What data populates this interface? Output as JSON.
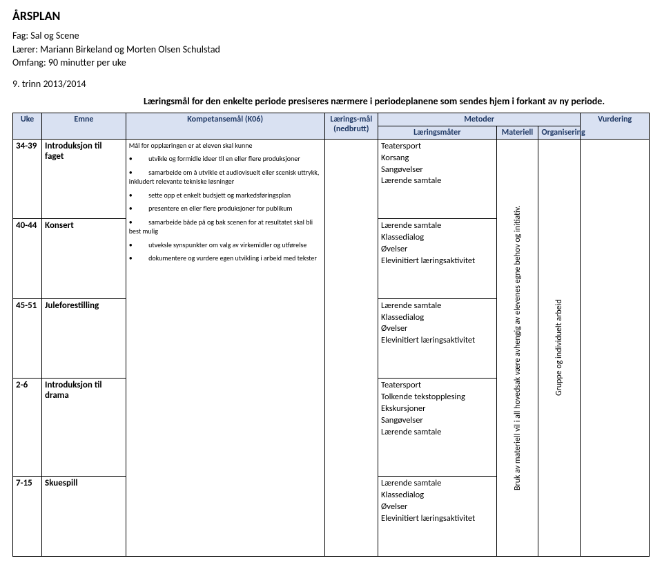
{
  "title": "ÅRSPLAN",
  "meta": {
    "fag_line": "Fag: Sal og Scene",
    "laerer_line": "Lærer: Mariann Birkeland og Morten Olsen Schulstad",
    "omfang_line": "Omfang: 90 minutter per uke"
  },
  "grade_line": "9. trinn 2013/2014",
  "intro": "Læringsmål for den enkelte periode presiseres nærmere i periodeplanene som sendes hjem i forkant av ny periode.",
  "headers": {
    "uke": "Uke",
    "emne": "Emne",
    "k06": "Kompetansemål (K06)",
    "mal": "Lærings-mål (nedbrutt)",
    "metoder": "Metoder",
    "laeringsmater": "Læringsmåter",
    "materiell": "Materiell",
    "organisering": "Organisering",
    "vurdering": "Vurdering"
  },
  "k06": {
    "intro": "Mål for opplæringen er at eleven skal kunne",
    "item1": "utvikle og formidle ideer til en eller flere produksjoner",
    "item2": "samarbeide om å utvikle et audiovisuelt eller scenisk uttrykk, inkludert relevante tekniske løsninger",
    "item3": "sette opp et enkelt budsjett og markedsføringsplan",
    "item4": "presentere en eller flere produksjoner for publikum",
    "item5": "samarbeide både på og bak scenen for at resultatet skal bli best mulig",
    "item6": "utveksle synspunkter om valg av virkemidler og utførelse",
    "item7": "dokumentere og vurdere egen utvikling i arbeid med tekster"
  },
  "rows": [
    {
      "uke": "34-39",
      "emne": "Introduksjon til faget",
      "lm": "Teatersport\nKorsang\nSangøvelser\nLærende samtale"
    },
    {
      "uke": "40-44",
      "emne": "Konsert",
      "lm": "Lærende samtale\nKlassedialog\nØvelser\nElevinitiert læringsaktivitet"
    },
    {
      "uke": "45-51",
      "emne": "Juleforestilling",
      "lm": "Lærende samtale\nKlassedialog\nØvelser\nElevinitiert læringsaktivitet"
    },
    {
      "uke": "2-6",
      "emne": "Introduksjon til drama",
      "lm": "Teatersport\nTolkende tekstopplesing\nEkskursjoner\nSangøvelser\nLærende samtale"
    },
    {
      "uke": "7-15",
      "emne": "Skuespill",
      "lm": "Lærende samtale\nKlassedialog\nØvelser\nElevinitiert læringsaktivitet"
    }
  ],
  "materiell_text": "Bruk av materiell vil i all hovedsak være avhengig av elevenes egne behov og initiativ.",
  "organisering_text": "Gruppe og individuelt arbeid",
  "colors": {
    "header_bg": "#d9e1f2",
    "header_fg": "#1f3864",
    "border": "#000000",
    "background": "#ffffff"
  }
}
